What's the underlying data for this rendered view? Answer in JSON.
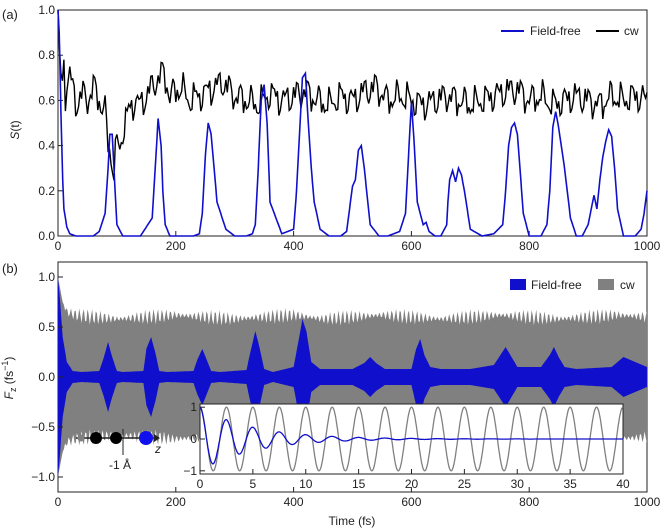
{
  "colors": {
    "field_free": "#1010cc",
    "cw_line": "#000000",
    "cw_fill": "#808080",
    "atom_black": "#000000",
    "atom_grey": "#808080",
    "atom_blue": "#1010ee"
  },
  "chart_data": [
    {
      "type": "line",
      "panel_label": "(a)",
      "ylabel_main": "S",
      "ylabel_arg": "(t)",
      "xlim": [
        0,
        1000
      ],
      "ylim": [
        0,
        1.0
      ],
      "xticks": [
        0,
        200,
        400,
        600,
        800,
        1000
      ],
      "yticks": [
        0.0,
        0.2,
        0.4,
        0.6,
        0.8,
        1.0
      ],
      "ytick_labels": [
        "0.0",
        "0.2",
        "0.4",
        "0.6",
        "0.8",
        "1.0"
      ],
      "legend_position": "top-right",
      "series": [
        {
          "name": "Field-free",
          "color_key": "field_free",
          "x": [
            0,
            2,
            5,
            8,
            10,
            15,
            20,
            30,
            40,
            60,
            70,
            80,
            85,
            88,
            92,
            95,
            100,
            110,
            120,
            140,
            160,
            165,
            170,
            175,
            178,
            182,
            190,
            200,
            215,
            230,
            240,
            245,
            250,
            255,
            260,
            270,
            285,
            300,
            320,
            330,
            335,
            340,
            345,
            350,
            355,
            360,
            380,
            400,
            405,
            410,
            415,
            420,
            425,
            430,
            435,
            445,
            460,
            480,
            490,
            495,
            500,
            505,
            510,
            515,
            520,
            530,
            545,
            560,
            580,
            590,
            595,
            600,
            605,
            610,
            615,
            620,
            625,
            630,
            640,
            650,
            660,
            662,
            665,
            670,
            675,
            680,
            685,
            690,
            700,
            720,
            740,
            755,
            760,
            765,
            770,
            775,
            780,
            790,
            800,
            810,
            820,
            830,
            835,
            840,
            845,
            850,
            860,
            870,
            880,
            890,
            900,
            910,
            915,
            920,
            925,
            930,
            935,
            940,
            945,
            950,
            960,
            980,
            990,
            995,
            1000
          ],
          "y": [
            1.0,
            0.9,
            0.55,
            0.25,
            0.12,
            0.04,
            0.01,
            0.0,
            0.0,
            0.0,
            0.02,
            0.1,
            0.3,
            0.45,
            0.45,
            0.3,
            0.05,
            0.0,
            0.0,
            0.0,
            0.08,
            0.3,
            0.52,
            0.4,
            0.2,
            0.05,
            0.0,
            0.0,
            0.0,
            0.0,
            0.01,
            0.1,
            0.35,
            0.5,
            0.45,
            0.15,
            0.03,
            0.0,
            0.0,
            0.01,
            0.05,
            0.3,
            0.6,
            0.67,
            0.5,
            0.15,
            0.01,
            0.03,
            0.2,
            0.45,
            0.7,
            0.72,
            0.5,
            0.3,
            0.15,
            0.03,
            0.0,
            0.0,
            0.02,
            0.12,
            0.22,
            0.25,
            0.38,
            0.4,
            0.3,
            0.05,
            0.0,
            0.0,
            0.02,
            0.1,
            0.35,
            0.59,
            0.4,
            0.15,
            0.1,
            0.05,
            0.06,
            0.02,
            0.0,
            0.0,
            0.05,
            0.15,
            0.25,
            0.29,
            0.24,
            0.3,
            0.27,
            0.2,
            0.03,
            0.0,
            0.01,
            0.05,
            0.2,
            0.4,
            0.48,
            0.5,
            0.45,
            0.1,
            0.0,
            0.0,
            0.0,
            0.05,
            0.2,
            0.48,
            0.55,
            0.48,
            0.3,
            0.08,
            0.0,
            0.0,
            0.05,
            0.18,
            0.12,
            0.25,
            0.35,
            0.42,
            0.47,
            0.44,
            0.3,
            0.12,
            0.0,
            0.0,
            0.03,
            0.1,
            0.2
          ]
        },
        {
          "name": "cw",
          "color_key": "cw_line",
          "x": [
            0,
            2,
            5,
            8,
            10,
            12,
            15,
            20,
            25,
            30,
            40,
            50,
            60,
            70,
            80,
            85,
            90,
            95,
            100,
            105,
            110,
            120,
            130,
            140,
            150,
            160,
            170,
            180,
            190,
            200,
            210,
            220,
            240,
            260,
            280,
            300,
            320,
            340,
            360,
            380,
            400,
            420,
            440,
            460,
            480,
            500,
            520,
            540,
            560,
            580,
            600,
            620,
            640,
            660,
            680,
            700,
            720,
            740,
            760,
            780,
            800,
            820,
            840,
            860,
            880,
            900,
            920,
            940,
            960,
            980,
            1000
          ],
          "y": [
            1.0,
            0.85,
            0.72,
            0.68,
            0.78,
            0.62,
            0.68,
            0.72,
            0.65,
            0.58,
            0.63,
            0.6,
            0.66,
            0.6,
            0.55,
            0.4,
            0.36,
            0.28,
            0.42,
            0.38,
            0.47,
            0.55,
            0.6,
            0.58,
            0.62,
            0.66,
            0.7,
            0.72,
            0.62,
            0.64,
            0.66,
            0.6,
            0.62,
            0.65,
            0.68,
            0.62,
            0.6,
            0.58,
            0.63,
            0.6,
            0.62,
            0.64,
            0.6,
            0.58,
            0.62,
            0.6,
            0.64,
            0.66,
            0.6,
            0.62,
            0.6,
            0.58,
            0.6,
            0.62,
            0.6,
            0.58,
            0.6,
            0.62,
            0.64,
            0.65,
            0.6,
            0.62,
            0.58,
            0.6,
            0.62,
            0.6,
            0.58,
            0.62,
            0.6,
            0.62,
            0.6
          ]
        }
      ]
    },
    {
      "type": "area",
      "panel_label": "(b)",
      "ylabel_main": "F",
      "ylabel_sub": "z",
      "ylabel_unit": " (fs",
      "ylabel_exp": "−1",
      "ylabel_close": ")",
      "xlabel": "Time (fs)",
      "xlim": [
        0,
        1000
      ],
      "ylim": [
        -1.15,
        1.15
      ],
      "xticks": [
        0,
        200,
        400,
        600,
        800,
        1000
      ],
      "yticks": [
        -1.0,
        -0.5,
        0.0,
        0.5,
        1.0
      ],
      "ytick_labels": [
        "−1.0",
        "−0.5",
        "0.0",
        "0.5",
        "1.0"
      ],
      "legend_position": "top-right",
      "series": [
        {
          "name": "Field-free",
          "color_key": "field_free",
          "kind": "envelope",
          "x": [
            0,
            3,
            8,
            15,
            25,
            40,
            70,
            78,
            85,
            92,
            100,
            110,
            145,
            150,
            158,
            165,
            172,
            185,
            230,
            237,
            245,
            252,
            260,
            275,
            320,
            327,
            335,
            342,
            350,
            365,
            400,
            408,
            415,
            422,
            430,
            445,
            500,
            520,
            530,
            540,
            555,
            600,
            608,
            615,
            622,
            632,
            650,
            700,
            740,
            760,
            780,
            820,
            835,
            842,
            850,
            860,
            880,
            940,
            960,
            1000
          ],
          "amp": [
            1.0,
            0.8,
            0.4,
            0.15,
            0.06,
            0.05,
            0.06,
            0.2,
            0.35,
            0.2,
            0.06,
            0.05,
            0.06,
            0.28,
            0.4,
            0.25,
            0.06,
            0.05,
            0.06,
            0.18,
            0.28,
            0.18,
            0.06,
            0.05,
            0.07,
            0.26,
            0.46,
            0.3,
            0.08,
            0.05,
            0.1,
            0.35,
            0.58,
            0.45,
            0.15,
            0.08,
            0.08,
            0.14,
            0.2,
            0.14,
            0.08,
            0.08,
            0.28,
            0.38,
            0.22,
            0.1,
            0.08,
            0.08,
            0.12,
            0.3,
            0.1,
            0.1,
            0.22,
            0.3,
            0.2,
            0.1,
            0.08,
            0.1,
            0.2,
            0.1
          ]
        },
        {
          "name": "cw",
          "color_key": "cw_fill",
          "kind": "envelope",
          "x": [
            0,
            3,
            8,
            15,
            30,
            60,
            100,
            150,
            200,
            250,
            300,
            350,
            400,
            450,
            500,
            550,
            600,
            650,
            700,
            750,
            800,
            850,
            900,
            950,
            1000
          ],
          "amp": [
            1.0,
            0.9,
            0.75,
            0.65,
            0.62,
            0.6,
            0.58,
            0.6,
            0.62,
            0.6,
            0.58,
            0.6,
            0.62,
            0.58,
            0.6,
            0.62,
            0.6,
            0.58,
            0.6,
            0.62,
            0.6,
            0.58,
            0.6,
            0.62,
            0.6
          ]
        }
      ]
    },
    {
      "type": "line",
      "role": "inset",
      "xlim": [
        0,
        40
      ],
      "ylim": [
        -1.1,
        1.1
      ],
      "xticks": [
        0,
        5,
        10,
        15,
        20,
        25,
        30,
        35,
        40
      ],
      "yticks": [
        -1,
        0,
        1
      ],
      "ytick_labels": [
        "−1",
        "0",
        "1"
      ],
      "series": [
        {
          "name": "Field-free",
          "color_key": "field_free",
          "period": 2.5,
          "decay": 5.0
        },
        {
          "name": "cw",
          "color_key": "cw_fill",
          "period": 2.5,
          "decay": 0
        }
      ]
    }
  ],
  "molecule": {
    "label": "-1 Å",
    "axis": "z"
  }
}
